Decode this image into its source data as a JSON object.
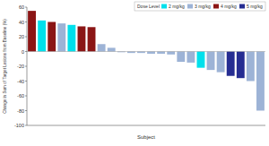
{
  "chart_data": {
    "type": "bar",
    "y_label": "Change in Sum of Target Lesions from Baseline (%)",
    "x_label": "Subject",
    "legend_title": "Dose Level",
    "legend": "top-right",
    "grid": false,
    "categories": [
      null,
      null,
      null,
      null,
      null,
      null,
      null,
      null,
      null,
      null,
      null,
      null,
      null,
      null,
      null,
      null,
      null,
      null,
      null,
      null,
      null,
      null,
      null,
      null
    ],
    "series": [
      {
        "name": "2 mg/kg",
        "color": "#00e0ec",
        "values": [
          null,
          42,
          null,
          null,
          36,
          null,
          null,
          null,
          null,
          null,
          null,
          null,
          null,
          null,
          null,
          null,
          null,
          -22,
          null,
          null,
          null,
          null,
          null,
          null
        ]
      },
      {
        "name": "3 mg/kg",
        "color": "#9db3d6",
        "values": [
          null,
          null,
          null,
          38,
          null,
          null,
          null,
          10,
          5,
          -1,
          -2,
          -2,
          -3,
          -3,
          -4,
          -14,
          -15,
          null,
          -25,
          -28,
          null,
          null,
          -40,
          -80
        ]
      },
      {
        "name": "4 mg/kg",
        "color": "#8b1515",
        "values": [
          55,
          null,
          40,
          null,
          null,
          34,
          33,
          null,
          null,
          null,
          null,
          null,
          null,
          null,
          null,
          null,
          null,
          null,
          null,
          null,
          null,
          null,
          null,
          null
        ]
      },
      {
        "name": "5 mg/kg",
        "color": "#262d92",
        "values": [
          null,
          null,
          null,
          null,
          null,
          null,
          null,
          null,
          null,
          null,
          null,
          null,
          null,
          null,
          null,
          null,
          null,
          null,
          null,
          null,
          -33,
          -36,
          null,
          null
        ]
      }
    ],
    "ylim": [
      -100,
      60
    ],
    "yticks": [
      -100,
      -80,
      -60,
      -40,
      -20,
      0,
      20,
      40,
      60
    ]
  }
}
